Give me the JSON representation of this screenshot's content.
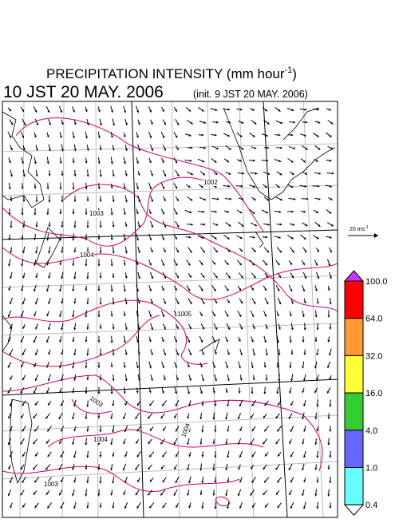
{
  "header": {
    "title": {
      "text": "PRECIPITATION INTENSITY (mm hour",
      "superscript": "-1",
      "close": ")"
    },
    "valid_time": "10 JST 20 MAY. 2006",
    "init_time": "(init. 9 JST 20 MAY. 2006)"
  },
  "map": {
    "contour_labels": [
      "1002",
      "1003",
      "1004",
      "1005",
      "1003",
      "1004",
      "1003",
      "1004"
    ]
  },
  "vector_scale": {
    "text": "20 ms",
    "superscript": "-1"
  },
  "colorbar": {
    "labels": [
      "100.0",
      "64.0",
      "32.0",
      "16.0",
      "4.0",
      "1.0",
      "0.4"
    ],
    "colors": [
      "#cc33ff",
      "#ff0000",
      "#ff9933",
      "#ffff33",
      "#33cc33",
      "#6666ff",
      "#66ffff",
      "#ffffff"
    ]
  }
}
